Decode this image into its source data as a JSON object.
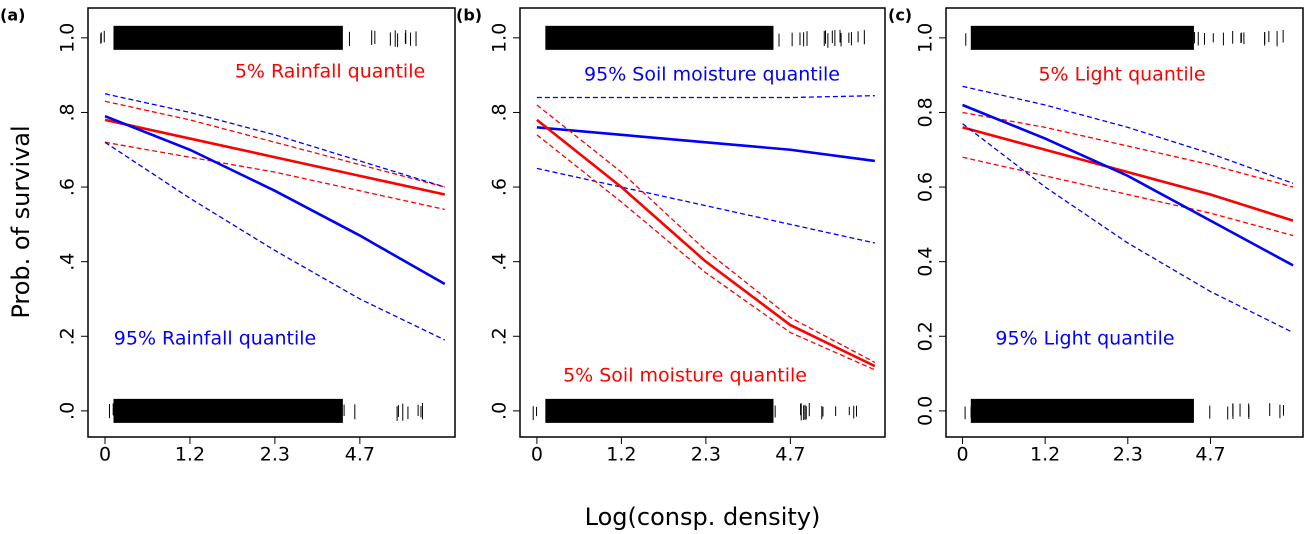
{
  "chart_data": [
    {
      "type": "line",
      "label": "(a)",
      "ylabel": "Prob. of survival",
      "x": [
        0,
        1,
        2,
        3,
        4
      ],
      "xlim": [
        -0.2,
        4.12
      ],
      "xticks": [
        0,
        {
          "value": 1,
          "label": "1.2"
        },
        {
          "value": 2,
          "label": "2.3"
        },
        {
          "value": 3,
          "label": "4.7"
        }
      ],
      "ylim": [
        -0.07,
        1.08
      ],
      "yticks": [
        {
          "value": 0,
          "label": ".0"
        },
        {
          "value": 0.2,
          "label": ".2"
        },
        {
          "value": 0.4,
          "label": ".4"
        },
        {
          "value": 0.6,
          "label": ".6"
        },
        {
          "value": 0.8,
          "label": ".8"
        },
        {
          "value": 1,
          "label": "1.0"
        }
      ],
      "series": [
        {
          "color": "#ff0000",
          "linestyle": "solid",
          "values": [
            0.78,
            0.73,
            0.68,
            0.63,
            0.58
          ]
        },
        {
          "color": "#ff0000",
          "linestyle": "dashed",
          "values": [
            0.83,
            0.78,
            0.72,
            0.66,
            0.6
          ]
        },
        {
          "color": "#ff0000",
          "linestyle": "dashed",
          "values": [
            0.72,
            0.68,
            0.64,
            0.59,
            0.54
          ]
        },
        {
          "color": "#0000ff",
          "linestyle": "solid",
          "values": [
            0.79,
            0.7,
            0.59,
            0.47,
            0.34
          ]
        },
        {
          "color": "#0000ff",
          "linestyle": "dashed",
          "values": [
            0.85,
            0.8,
            0.74,
            0.67,
            0.6
          ]
        },
        {
          "color": "#0000ff",
          "linestyle": "dashed",
          "values": [
            0.72,
            0.57,
            0.43,
            0.3,
            0.19
          ]
        }
      ],
      "annotations": [
        {
          "text": "5% Rainfall quantile",
          "color": "#ff0000"
        },
        {
          "text": "95% Rainfall quantile",
          "color": "#0000ff"
        }
      ]
    },
    {
      "type": "line",
      "label": "(b)",
      "xlabel": "Log(consp. density)",
      "x": [
        0,
        1,
        2,
        3,
        4
      ],
      "xlim": [
        -0.2,
        4.12
      ],
      "xticks": [
        0,
        {
          "value": 1,
          "label": "1.2"
        },
        {
          "value": 2,
          "label": "2.3"
        },
        {
          "value": 3,
          "label": "4.7"
        }
      ],
      "ylim": [
        -0.07,
        1.08
      ],
      "yticks": [
        {
          "value": 0,
          "label": ".0"
        },
        {
          "value": 0.2,
          "label": ".2"
        },
        {
          "value": 0.4,
          "label": ".4"
        },
        {
          "value": 0.6,
          "label": ".6"
        },
        {
          "value": 0.8,
          "label": ".8"
        },
        {
          "value": 1,
          "label": "1.0"
        }
      ],
      "series": [
        {
          "color": "#0000ff",
          "linestyle": "solid",
          "values": [
            0.76,
            0.74,
            0.72,
            0.7,
            0.67
          ]
        },
        {
          "color": "#0000ff",
          "linestyle": "dashed",
          "values": [
            0.84,
            0.84,
            0.84,
            0.84,
            0.845
          ]
        },
        {
          "color": "#0000ff",
          "linestyle": "dashed",
          "values": [
            0.65,
            0.6,
            0.55,
            0.5,
            0.45
          ]
        },
        {
          "color": "#ff0000",
          "linestyle": "solid",
          "values": [
            0.78,
            0.6,
            0.4,
            0.23,
            0.12
          ]
        },
        {
          "color": "#ff0000",
          "linestyle": "dashed",
          "values": [
            0.82,
            0.64,
            0.43,
            0.25,
            0.13
          ]
        },
        {
          "color": "#ff0000",
          "linestyle": "dashed",
          "values": [
            0.74,
            0.56,
            0.37,
            0.21,
            0.11
          ]
        }
      ],
      "annotations": [
        {
          "text": "95% Soil moisture quantile",
          "color": "#0000ff"
        },
        {
          "text": "5% Soil moisture quantile",
          "color": "#ff0000"
        }
      ]
    },
    {
      "type": "line",
      "label": "(c)",
      "x": [
        0,
        1,
        2,
        3,
        4
      ],
      "xlim": [
        -0.2,
        4.12
      ],
      "xticks": [
        0,
        {
          "value": 1,
          "label": "1.2"
        },
        {
          "value": 2,
          "label": "2.3"
        },
        {
          "value": 3,
          "label": "4.7"
        }
      ],
      "ylim": [
        -0.07,
        1.08
      ],
      "yticks": [
        {
          "value": 0,
          "label": "0.0"
        },
        {
          "value": 0.2,
          "label": "0.2"
        },
        {
          "value": 0.4,
          "label": "0.4"
        },
        {
          "value": 0.6,
          "label": "0.6"
        },
        {
          "value": 0.8,
          "label": "0.8"
        },
        {
          "value": 1,
          "label": "1.0"
        }
      ],
      "series": [
        {
          "color": "#ff0000",
          "linestyle": "solid",
          "values": [
            0.76,
            0.7,
            0.64,
            0.58,
            0.51
          ]
        },
        {
          "color": "#ff0000",
          "linestyle": "dashed",
          "values": [
            0.8,
            0.76,
            0.71,
            0.66,
            0.6
          ]
        },
        {
          "color": "#ff0000",
          "linestyle": "dashed",
          "values": [
            0.68,
            0.63,
            0.58,
            0.53,
            0.47
          ]
        },
        {
          "color": "#0000ff",
          "linestyle": "solid",
          "values": [
            0.82,
            0.73,
            0.63,
            0.51,
            0.39
          ]
        },
        {
          "color": "#0000ff",
          "linestyle": "dashed",
          "values": [
            0.87,
            0.82,
            0.76,
            0.69,
            0.61
          ]
        },
        {
          "color": "#0000ff",
          "linestyle": "dashed",
          "values": [
            0.77,
            0.6,
            0.45,
            0.32,
            0.21
          ]
        }
      ],
      "annotations": [
        {
          "text": "5% Light quantile",
          "color": "#ff0000"
        },
        {
          "text": "95% Light quantile",
          "color": "#0000ff"
        }
      ]
    }
  ]
}
